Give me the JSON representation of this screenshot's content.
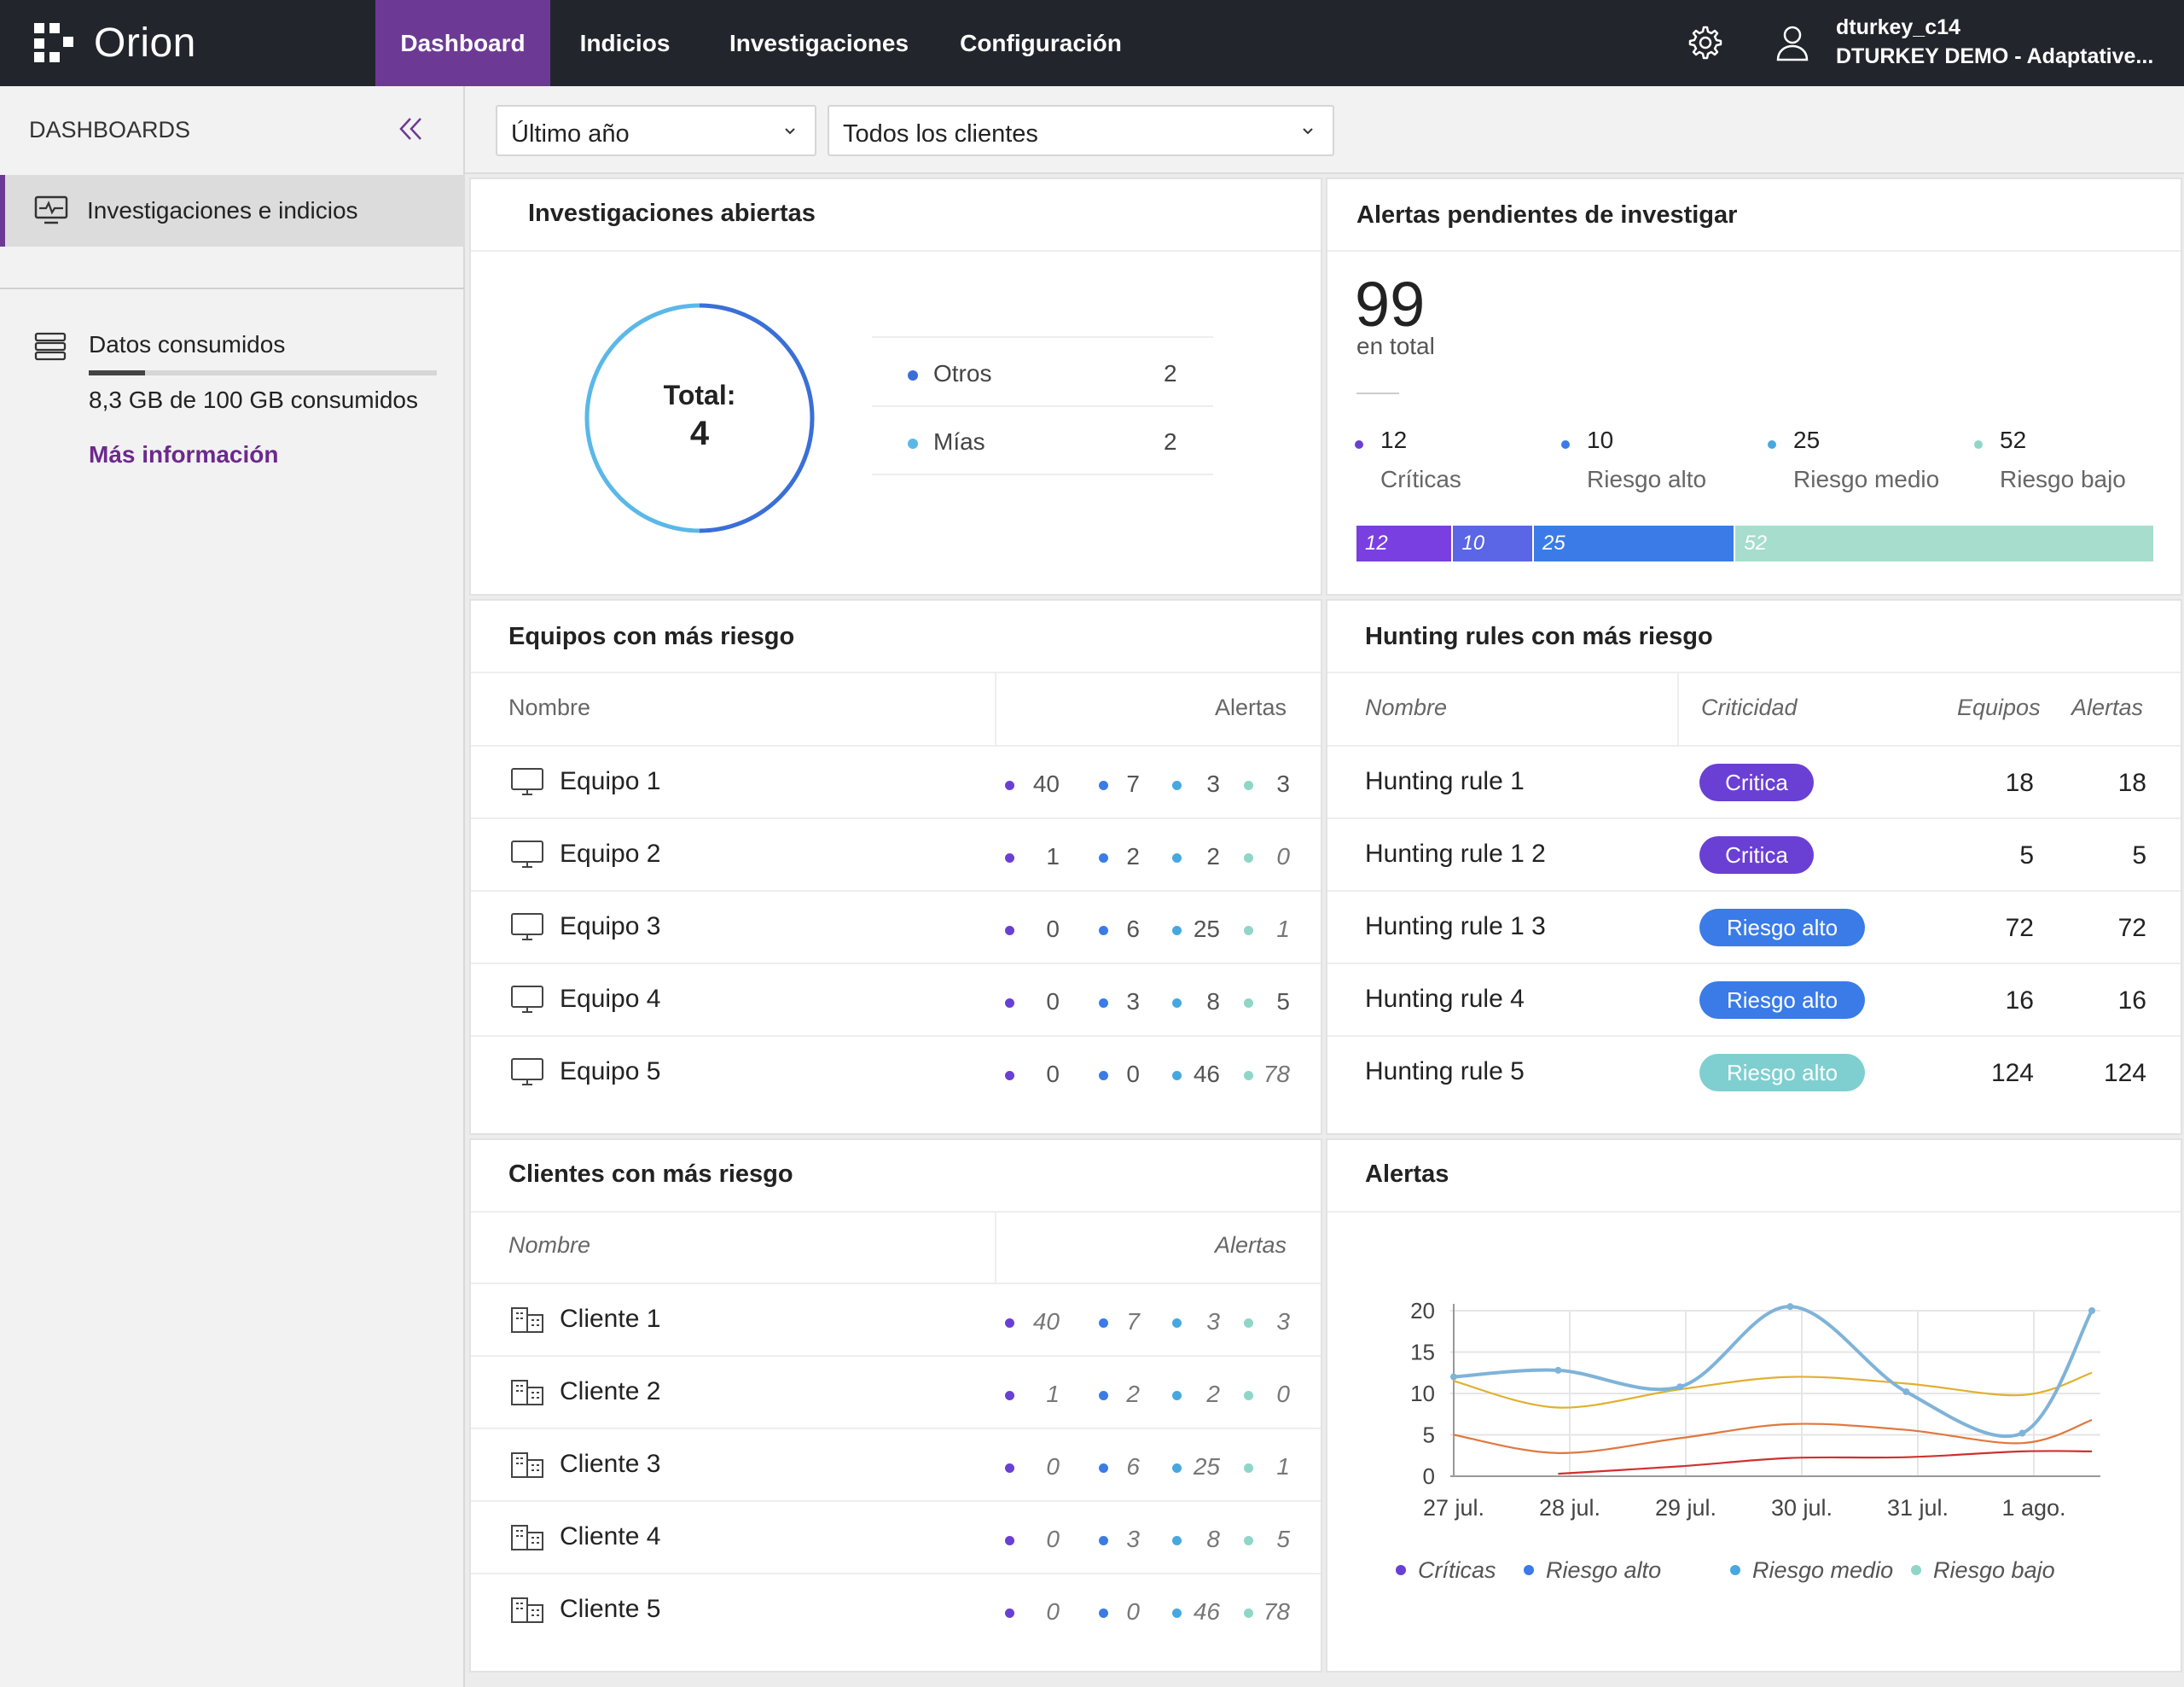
{
  "app": {
    "name": "Orion"
  },
  "nav": {
    "tabs": [
      {
        "label": "Dashboard",
        "active": true
      },
      {
        "label": "Indicios"
      },
      {
        "label": "Investigaciones"
      },
      {
        "label": "Configuración"
      }
    ]
  },
  "user": {
    "name": "dturkey_c14",
    "org": "DTURKEY DEMO - Adaptative..."
  },
  "sidebar": {
    "title": "DASHBOARDS",
    "item": "Investigaciones e indicios",
    "data_label": "Datos consumidos",
    "data_used_fraction": 0.083,
    "data_value": "8,3 GB de 100 GB consumidos",
    "more_link": "Más información"
  },
  "filters": {
    "period": "Último año",
    "client": "Todos los clientes"
  },
  "colors": {
    "critical": "#6a3fd4",
    "high": "#3a7be8",
    "medium": "#47a8e0",
    "low": "#8fd6c8",
    "brand": "#6c3a94"
  },
  "investigations": {
    "title": "Investigaciones abiertas",
    "total_label": "Total:",
    "total": "4",
    "legend": [
      {
        "label": "Otros",
        "value": "2",
        "color": "#3a6fd8"
      },
      {
        "label": "Mías",
        "value": "2",
        "color": "#5ab8e8"
      }
    ]
  },
  "pending": {
    "title": "Alertas pendientes de investigar",
    "total": "99",
    "total_caption": "en total",
    "levels": [
      {
        "value": "12",
        "label": "Críticas",
        "color": "#6a3fd4"
      },
      {
        "value": "10",
        "label": "Riesgo alto",
        "color": "#3a7be8"
      },
      {
        "value": "25",
        "label": "Riesgo medio",
        "color": "#47a8e0"
      },
      {
        "value": "52",
        "label": "Riesgo bajo",
        "color": "#8fd6c8"
      }
    ],
    "bar": [
      {
        "value": "12",
        "color": "#7a3fe0"
      },
      {
        "value": "10",
        "color": "#5a66e6"
      },
      {
        "value": "25",
        "color": "#3a7be8"
      },
      {
        "value": "52",
        "color": "#a6ddcc"
      }
    ]
  },
  "devices": {
    "title": "Equipos con más riesgo",
    "col_name": "Nombre",
    "col_alerts": "Alertas",
    "rows": [
      {
        "name": "Equipo 1",
        "vals": [
          "40",
          "7",
          "3",
          "3"
        ],
        "italic": [
          false,
          false,
          false,
          false
        ]
      },
      {
        "name": "Equipo  2",
        "vals": [
          "1",
          "2",
          "2",
          "0"
        ],
        "italic": [
          false,
          false,
          false,
          true
        ]
      },
      {
        "name": "Equipo  3",
        "vals": [
          "0",
          "6",
          "25",
          "1"
        ],
        "italic": [
          false,
          false,
          false,
          true
        ]
      },
      {
        "name": "Equipo  4",
        "vals": [
          "0",
          "3",
          "8",
          "5"
        ],
        "italic": [
          false,
          false,
          false,
          false
        ]
      },
      {
        "name": "Equipo  5",
        "vals": [
          "0",
          "0",
          "46",
          "78"
        ],
        "italic": [
          false,
          false,
          false,
          true
        ]
      }
    ]
  },
  "rules": {
    "title": "Hunting rules con más riesgo",
    "col_name": "Nombre",
    "col_crit": "Criticidad",
    "col_devices": "Equipos",
    "col_alerts": "Alertas",
    "rows": [
      {
        "name": "Hunting rule 1",
        "badge": "Critica",
        "color": "#6a3fd4",
        "devices": "18",
        "alerts": "18"
      },
      {
        "name": "Hunting rule 1 2",
        "badge": "Critica",
        "color": "#6a3fd4",
        "devices": "5",
        "alerts": "5"
      },
      {
        "name": "Hunting rule 1 3",
        "badge": "Riesgo alto",
        "color": "#3a7be8",
        "devices": "72",
        "alerts": "72"
      },
      {
        "name": "Hunting rule 4",
        "badge": "Riesgo alto",
        "color": "#3a7be8",
        "devices": "16",
        "alerts": "16"
      },
      {
        "name": "Hunting rule 5",
        "badge": "Riesgo alto",
        "color": "#7fcfd0",
        "devices": "124",
        "alerts": "124"
      }
    ]
  },
  "clients": {
    "title": "Clientes con más riesgo",
    "col_name": "Nombre",
    "col_alerts": "Alertas",
    "rows": [
      {
        "name": "Cliente 1",
        "vals": [
          "40",
          "7",
          "3",
          "3"
        ]
      },
      {
        "name": "Cliente  2",
        "vals": [
          "1",
          "2",
          "2",
          "0"
        ]
      },
      {
        "name": "Cliente  3",
        "vals": [
          "0",
          "6",
          "25",
          "1"
        ]
      },
      {
        "name": "Cliente  4",
        "vals": [
          "0",
          "3",
          "8",
          "5"
        ]
      },
      {
        "name": "Cliente  5",
        "vals": [
          "0",
          "0",
          "46",
          "78"
        ]
      }
    ]
  },
  "alerts_chart": {
    "title": "Alertas",
    "chart_data": {
      "type": "line",
      "x": [
        "27 jul.",
        "28 jul.",
        "29 jul.",
        "30 jul.",
        "31 jul.",
        "1 ago."
      ],
      "ylim": [
        0,
        20
      ],
      "yticks": [
        "0",
        "5",
        "10",
        "15",
        "20"
      ],
      "series": [
        {
          "name": "Riesgo medio",
          "color": "#7fb3d8",
          "points": [
            [
              0,
              12
            ],
            [
              0.9,
              12.8
            ],
            [
              1.95,
              10.8
            ],
            [
              2.9,
              20.5
            ],
            [
              3.9,
              10.2
            ],
            [
              4.9,
              5.2
            ],
            [
              5.5,
              20
            ]
          ]
        },
        {
          "name": "",
          "color": "#e0b030",
          "points": [
            [
              0,
              11.5
            ],
            [
              0.9,
              8.3
            ],
            [
              1.95,
              10.5
            ],
            [
              2.9,
              12
            ],
            [
              3.9,
              11.2
            ],
            [
              4.9,
              9.8
            ],
            [
              5.5,
              12.5
            ]
          ]
        },
        {
          "name": "",
          "color": "#e07840",
          "points": [
            [
              0,
              5
            ],
            [
              0.9,
              2.8
            ],
            [
              1.95,
              4.6
            ],
            [
              2.9,
              6.3
            ],
            [
              3.9,
              5.6
            ],
            [
              4.9,
              4
            ],
            [
              5.5,
              6.8
            ]
          ]
        },
        {
          "name": "",
          "color": "#d03030",
          "points": [
            [
              0.9,
              0.3
            ],
            [
              1.95,
              1.2
            ],
            [
              2.9,
              2.2
            ],
            [
              3.9,
              2.3
            ],
            [
              4.9,
              3
            ],
            [
              5.5,
              3
            ]
          ]
        }
      ],
      "legend": [
        {
          "label": "Críticas",
          "color": "#6a3fd4"
        },
        {
          "label": "Riesgo alto",
          "color": "#3a7be8"
        },
        {
          "label": "Riesgo medio",
          "color": "#47a8e0"
        },
        {
          "label": "Riesgo bajo",
          "color": "#8fd6c8"
        }
      ]
    }
  }
}
